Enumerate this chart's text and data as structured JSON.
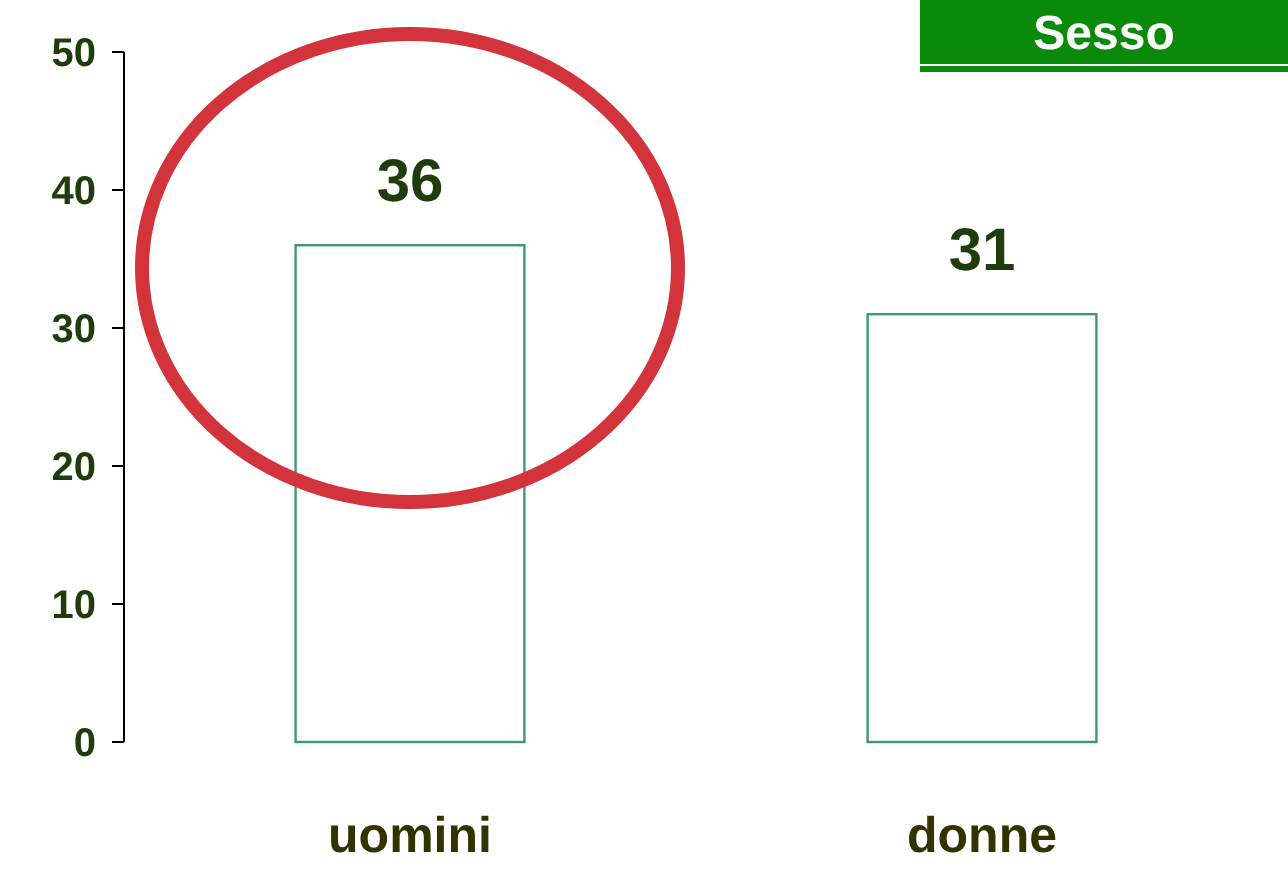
{
  "chart_data": {
    "type": "bar",
    "title": "Sesso",
    "categories": [
      "uomini",
      "donne"
    ],
    "values": [
      36,
      31
    ],
    "color": "#3c9a6e",
    "ylim": [
      0,
      50
    ],
    "yticks": [
      0,
      10,
      20,
      30,
      40,
      50
    ],
    "data_labels": true
  }
}
